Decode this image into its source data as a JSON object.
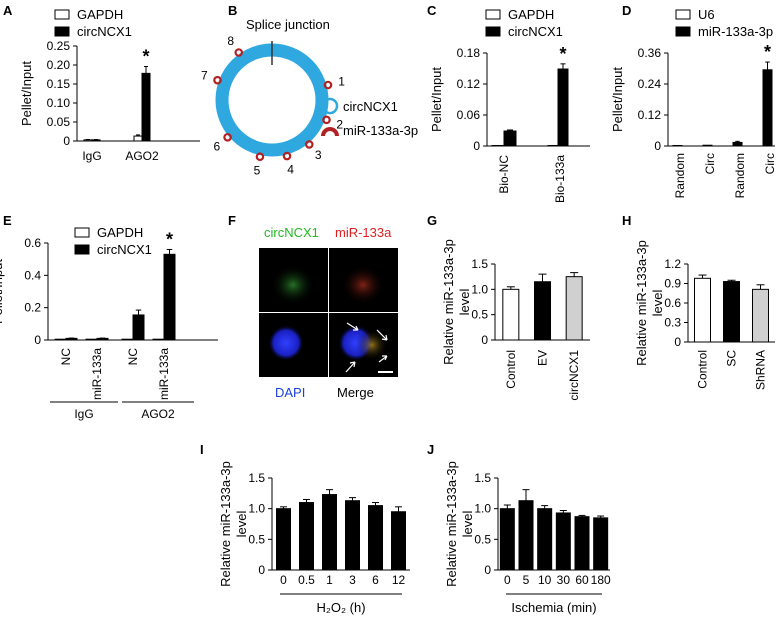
{
  "colors": {
    "black_bar": "#000000",
    "white_bar": "#ffffff",
    "gray_bar": "#d0d0d0",
    "circ_ring": "#2fa8e0",
    "mir_mark": "#b22222",
    "green_label": "#22b822",
    "red_label": "#e02020",
    "dapi_label": "#1a3fe0"
  },
  "panels": {
    "A": "A",
    "B": "B",
    "C": "C",
    "D": "D",
    "E": "E",
    "F": "F",
    "G": "G",
    "H": "H",
    "I": "I",
    "J": "J"
  },
  "diagram_b": {
    "title": "Splice junction",
    "legend_circ": "circNCX1",
    "legend_mir": "miR-133a-3p",
    "site_numbers": [
      "1",
      "2",
      "3",
      "4",
      "5",
      "6",
      "7",
      "8"
    ]
  },
  "micrograph_f": {
    "label_green": "circNCX1",
    "label_red": "miR-133a",
    "label_dapi": "DAPI",
    "label_merge": "Merge"
  },
  "chart_data": [
    {
      "panel": "A",
      "type": "bar",
      "ylabel": "Pellet/Input",
      "ylim": [
        0,
        0.25
      ],
      "yticks": [
        "0",
        "0.05",
        "0.10",
        "0.15",
        "0.20",
        "0.25"
      ],
      "categories": [
        "IgG",
        "AGO2"
      ],
      "series": [
        {
          "name": "GAPDH",
          "values": [
            0.003,
            0.013
          ],
          "errors": [
            0.001,
            0.003
          ]
        },
        {
          "name": "circNCX1",
          "values": [
            0.003,
            0.178
          ],
          "errors": [
            0.001,
            0.018
          ]
        }
      ],
      "annotations": [
        "*"
      ]
    },
    {
      "panel": "C",
      "type": "bar",
      "ylabel": "Pellet/Input",
      "ylim": [
        0,
        0.18
      ],
      "yticks": [
        "0",
        "0.06",
        "0.12",
        "0.18"
      ],
      "categories": [
        "Bio-NC",
        "Bio-133a"
      ],
      "series": [
        {
          "name": "GAPDH",
          "values": [
            0.001,
            0.001
          ],
          "errors": [
            0,
            0
          ]
        },
        {
          "name": "circNCX1",
          "values": [
            0.029,
            0.149
          ],
          "errors": [
            0.002,
            0.01
          ]
        }
      ],
      "annotations": [
        "*"
      ]
    },
    {
      "panel": "D",
      "type": "bar",
      "ylabel": "Pellet/Input",
      "ylim": [
        0,
        0.36
      ],
      "yticks": [
        "0",
        "0.12",
        "0.24",
        "0.36"
      ],
      "categories": [
        "Random",
        "Circ",
        "Random",
        "Circ"
      ],
      "series": [
        {
          "name": "U6",
          "values": [
            0.002,
            0.003,
            0,
            0
          ],
          "errors": [
            0,
            0,
            0,
            0
          ]
        },
        {
          "name": "miR-133a-3p",
          "values": [
            0,
            0,
            0.014,
            0.295
          ],
          "errors": [
            0,
            0,
            0.004,
            0.03
          ]
        }
      ],
      "annotations": [
        "*"
      ]
    },
    {
      "panel": "E",
      "type": "bar",
      "ylabel": "Pellet/Input",
      "ylim": [
        0,
        0.6
      ],
      "yticks": [
        "0",
        "0.2",
        "0.4",
        "0.6"
      ],
      "categories": [
        "NC",
        "miR-133a",
        "NC",
        "miR-133a"
      ],
      "groups": [
        "IgG",
        "AGO2"
      ],
      "series": [
        {
          "name": "GAPDH",
          "values": [
            0.005,
            0.005,
            0.005,
            0.005
          ],
          "errors": [
            0,
            0,
            0,
            0
          ]
        },
        {
          "name": "circNCX1",
          "values": [
            0.01,
            0.01,
            0.155,
            0.53
          ],
          "errors": [
            0.002,
            0.002,
            0.03,
            0.03
          ]
        }
      ],
      "annotations": [
        "*"
      ]
    },
    {
      "panel": "G",
      "type": "bar",
      "ylabel": "Relative miR-133a-3p level",
      "ylim": [
        0,
        1.5
      ],
      "yticks": [
        "0",
        "0.5",
        "1.0",
        "1.5"
      ],
      "categories": [
        "Control",
        "EV",
        "circNCX1"
      ],
      "values": [
        1.0,
        1.15,
        1.25
      ],
      "errors": [
        0.05,
        0.15,
        0.08
      ]
    },
    {
      "panel": "H",
      "type": "bar",
      "ylabel": "Relative miR-133a-3p level",
      "ylim": [
        0,
        1.2
      ],
      "yticks": [
        "0",
        "0.3",
        "0.6",
        "0.9",
        "1.2"
      ],
      "categories": [
        "Control",
        "SC",
        "ShRNA"
      ],
      "values": [
        0.98,
        0.93,
        0.81
      ],
      "errors": [
        0.05,
        0.02,
        0.07
      ]
    },
    {
      "panel": "I",
      "type": "bar",
      "ylabel": "Relative miR-133a-3p level",
      "xlabel": "H₂O₂ (h)",
      "ylim": [
        0,
        1.5
      ],
      "yticks": [
        "0",
        "0.5",
        "1.0",
        "1.5"
      ],
      "categories": [
        "0",
        "0.5",
        "1",
        "3",
        "6",
        "12"
      ],
      "values": [
        1.0,
        1.1,
        1.23,
        1.13,
        1.05,
        0.95
      ],
      "errors": [
        0.03,
        0.05,
        0.08,
        0.05,
        0.05,
        0.08
      ]
    },
    {
      "panel": "J",
      "type": "bar",
      "ylabel": "Relative miR-133a-3p level",
      "xlabel": "Ischemia (min)",
      "ylim": [
        0,
        1.5
      ],
      "yticks": [
        "0",
        "0.5",
        "1.0",
        "1.5"
      ],
      "categories": [
        "0",
        "5",
        "10",
        "30",
        "60",
        "180"
      ],
      "values": [
        1.0,
        1.13,
        1.0,
        0.93,
        0.87,
        0.85
      ],
      "errors": [
        0.06,
        0.18,
        0.05,
        0.04,
        0.02,
        0.03
      ]
    }
  ]
}
